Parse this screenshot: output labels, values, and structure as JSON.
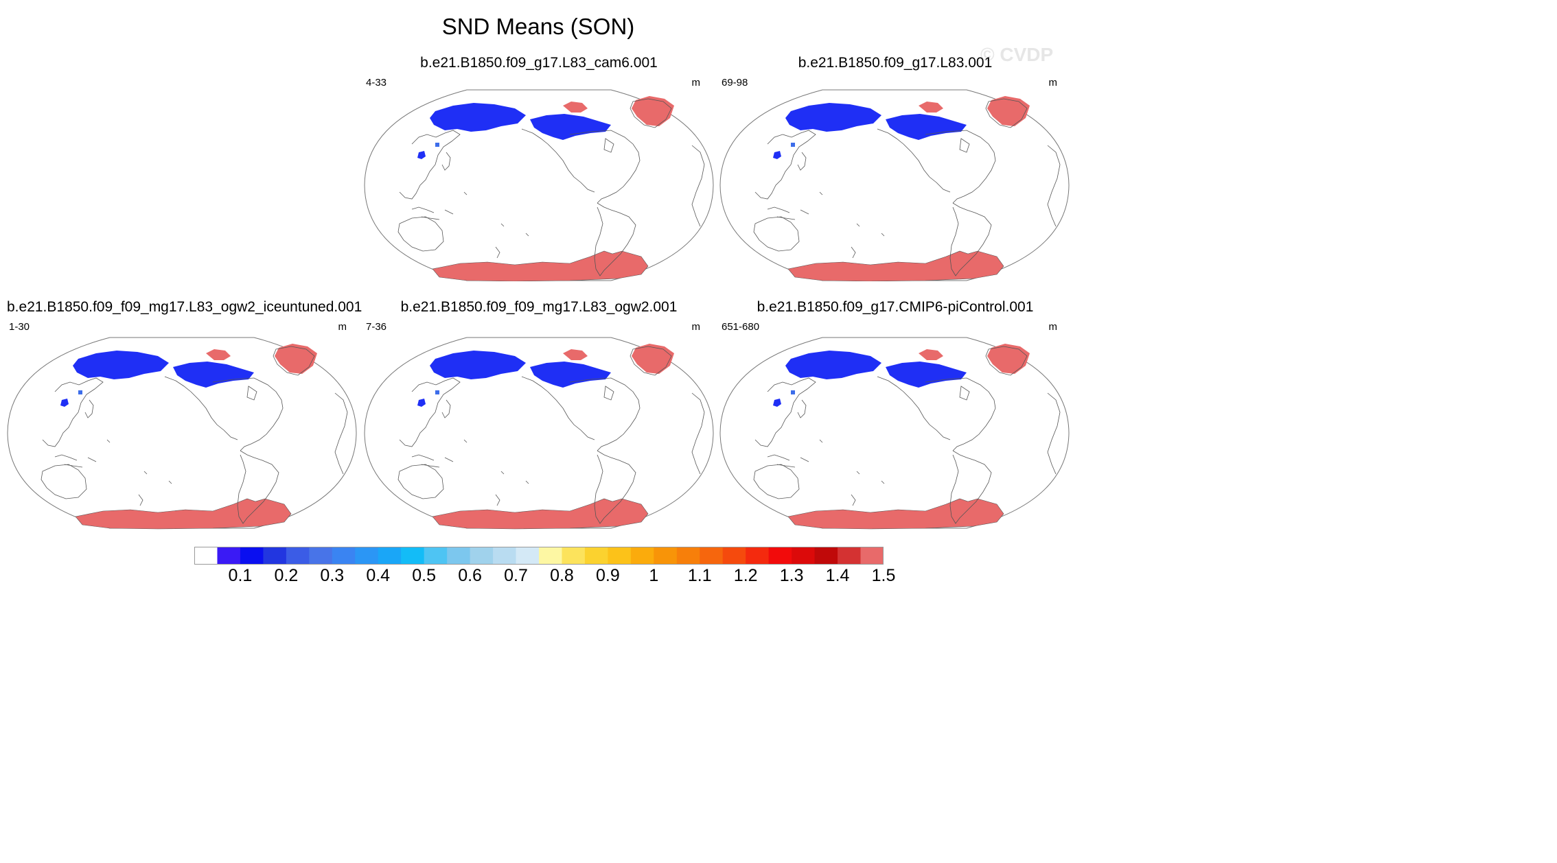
{
  "title": "SND Means (SON)",
  "watermark": "© CVDP",
  "units": "m",
  "colors": {
    "snow_deep": "#e86a6a",
    "snow_blue": "#1f2ff5",
    "snow_midblue": "#3d6dea",
    "coast": "#555555",
    "frame": "#777777"
  },
  "chart_data": {
    "type": "heatmap",
    "variable": "SND",
    "season": "SON",
    "projection": "Robinson, Pacific-centered",
    "colorbar": {
      "ticks": [
        "0.1",
        "0.2",
        "0.3",
        "0.4",
        "0.5",
        "0.6",
        "0.7",
        "0.8",
        "0.9",
        "1",
        "1.1",
        "1.2",
        "1.3",
        "1.4",
        "1.5"
      ],
      "levels": [
        0.05,
        0.1,
        0.15,
        0.2,
        0.25,
        0.3,
        0.35,
        0.4,
        0.45,
        0.5,
        0.55,
        0.6,
        0.65,
        0.7,
        0.75,
        0.8,
        0.85,
        0.9,
        0.95,
        1.0,
        1.05,
        1.1,
        1.15,
        1.2,
        1.25,
        1.3,
        1.35,
        1.4,
        1.45,
        1.5
      ],
      "colors": [
        "#ffffff",
        "#3a1af5",
        "#0a0ff0",
        "#2236e0",
        "#3b5ce6",
        "#4874e8",
        "#3a84f2",
        "#2b96f5",
        "#1aa6f7",
        "#13bcf7",
        "#4ec4f3",
        "#7cc7ee",
        "#a0d2ec",
        "#b9dcf1",
        "#d4e9f6",
        "#fdf7a3",
        "#fce35c",
        "#fbd22f",
        "#fcc219",
        "#fbab0c",
        "#f89408",
        "#f77f0a",
        "#f6660d",
        "#f54a0d",
        "#f42a0e",
        "#f20b0b",
        "#dc0a0a",
        "#c00909",
        "#d43232",
        "#e86a6a"
      ]
    },
    "panels": [
      {
        "name": "b.e21.B1850.f09_g17.L83_cam6.001",
        "years": "4-33"
      },
      {
        "name": "b.e21.B1850.f09_g17.L83.001",
        "years": "69-98"
      },
      {
        "name": "b.e21.B1850.f09_f09_mg17.L83_ogw2_iceuntuned.001",
        "years": "1-30"
      },
      {
        "name": "b.e21.B1850.f09_f09_mg17.L83_ogw2.001",
        "years": "7-36"
      },
      {
        "name": "b.e21.B1850.f09_g17.CMIP6-piControl.001",
        "years": "651-680"
      }
    ]
  }
}
